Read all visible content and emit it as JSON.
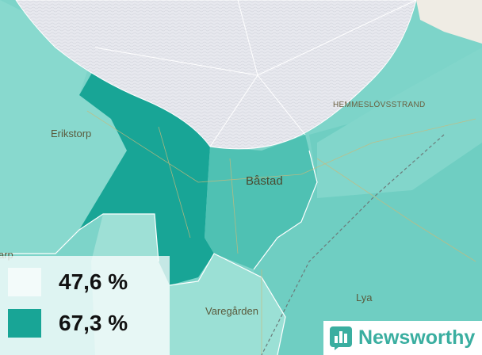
{
  "places": [
    {
      "label": "Erikstorp"
    },
    {
      "label": "HEMMESLÖVSSTRAND"
    },
    {
      "label": "Båstad"
    },
    {
      "label": "Varegården"
    },
    {
      "label": "Lya"
    },
    {
      "label": "arp"
    }
  ],
  "legend": {
    "items": [
      {
        "label": "47,6 %",
        "color": "#f3fbfa"
      },
      {
        "label": "67,3 %",
        "color": "#18a596"
      }
    ]
  },
  "brand": {
    "name": "Newsworthy"
  }
}
